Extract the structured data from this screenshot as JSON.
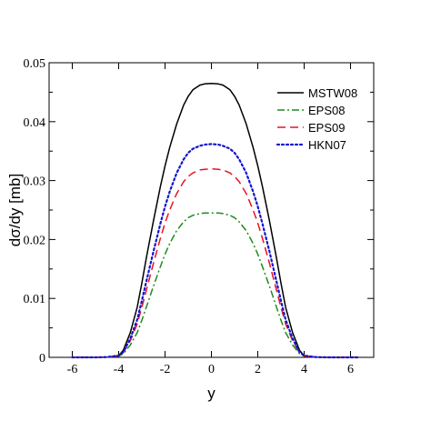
{
  "chart_data": {
    "type": "line",
    "xlabel": "y",
    "ylabel": "dσ/dy [mb]",
    "xlim": [
      -7,
      7
    ],
    "ylim": [
      0,
      0.05
    ],
    "xticks": [
      -6,
      -4,
      -2,
      0,
      2,
      4,
      6
    ],
    "xtick_labels": [
      "-6",
      "-4",
      "-2",
      "0",
      "2",
      "4",
      "6"
    ],
    "yticks": [
      0,
      0.01,
      0.02,
      0.03,
      0.04,
      0.05
    ],
    "ytick_labels": [
      "0",
      "0.01",
      "0.02",
      "0.03",
      "0.04",
      "0.05"
    ],
    "grid": false,
    "legend_position": "top-right",
    "x": [
      -6.0,
      -5.0,
      -4.5,
      -4.0,
      -3.8,
      -3.5,
      -3.2,
      -3.0,
      -2.8,
      -2.5,
      -2.2,
      -2.0,
      -1.8,
      -1.5,
      -1.2,
      -1.0,
      -0.8,
      -0.5,
      -0.3,
      0.0,
      0.3,
      0.5,
      0.8,
      1.0,
      1.2,
      1.5,
      1.8,
      2.0,
      2.2,
      2.5,
      2.8,
      3.0,
      3.2,
      3.5,
      3.8,
      4.0,
      4.5,
      5.0,
      6.0,
      6.3
    ],
    "series": [
      {
        "name": "MSTW08",
        "color": "#000000",
        "dash": "solid",
        "values": [
          0,
          0,
          5e-05,
          0.0003,
          0.0012,
          0.0042,
          0.0085,
          0.0126,
          0.017,
          0.0232,
          0.029,
          0.0325,
          0.0356,
          0.0396,
          0.0428,
          0.0443,
          0.0454,
          0.0462,
          0.0464,
          0.0465,
          0.0464,
          0.0462,
          0.0454,
          0.0443,
          0.0428,
          0.0396,
          0.0356,
          0.0325,
          0.029,
          0.0232,
          0.017,
          0.0126,
          0.0085,
          0.0042,
          0.0012,
          0.0003,
          5e-05,
          0,
          0,
          0
        ]
      },
      {
        "name": "EPS08",
        "color": "#1f8c1f",
        "dash": "dashdot",
        "values": [
          0,
          0,
          3e-05,
          0.0002,
          0.0006,
          0.0021,
          0.0042,
          0.0063,
          0.0086,
          0.0121,
          0.0154,
          0.0175,
          0.0193,
          0.0215,
          0.023,
          0.0237,
          0.0241,
          0.0244,
          0.0245,
          0.0245,
          0.0245,
          0.0244,
          0.0241,
          0.0237,
          0.023,
          0.0215,
          0.0193,
          0.0175,
          0.0154,
          0.0121,
          0.0086,
          0.0063,
          0.0042,
          0.0021,
          0.0006,
          0.0002,
          3e-05,
          0,
          0,
          0
        ]
      },
      {
        "name": "EPS09",
        "color": "#e8141e",
        "dash": "dashed",
        "values": [
          0,
          0,
          4e-05,
          0.0002,
          0.0008,
          0.0028,
          0.0057,
          0.0085,
          0.0115,
          0.016,
          0.0202,
          0.0228,
          0.025,
          0.0278,
          0.0298,
          0.0307,
          0.0313,
          0.0318,
          0.0319,
          0.032,
          0.0319,
          0.0318,
          0.0313,
          0.0307,
          0.0298,
          0.0278,
          0.025,
          0.0228,
          0.0202,
          0.016,
          0.0115,
          0.0085,
          0.0057,
          0.0028,
          0.0008,
          0.0002,
          4e-05,
          0,
          0,
          0
        ]
      },
      {
        "name": "HKN07",
        "color": "#1414d2",
        "dash": "dotted",
        "values": [
          0,
          0,
          4e-05,
          0.0003,
          0.0009,
          0.0032,
          0.0064,
          0.0096,
          0.013,
          0.018,
          0.0227,
          0.0256,
          0.0281,
          0.0313,
          0.0336,
          0.0347,
          0.0354,
          0.0359,
          0.0361,
          0.0362,
          0.0361,
          0.0359,
          0.0354,
          0.0347,
          0.0336,
          0.0313,
          0.0281,
          0.0256,
          0.0227,
          0.018,
          0.013,
          0.0096,
          0.0064,
          0.0032,
          0.0009,
          0.0003,
          4e-05,
          0,
          0,
          0
        ]
      }
    ]
  }
}
